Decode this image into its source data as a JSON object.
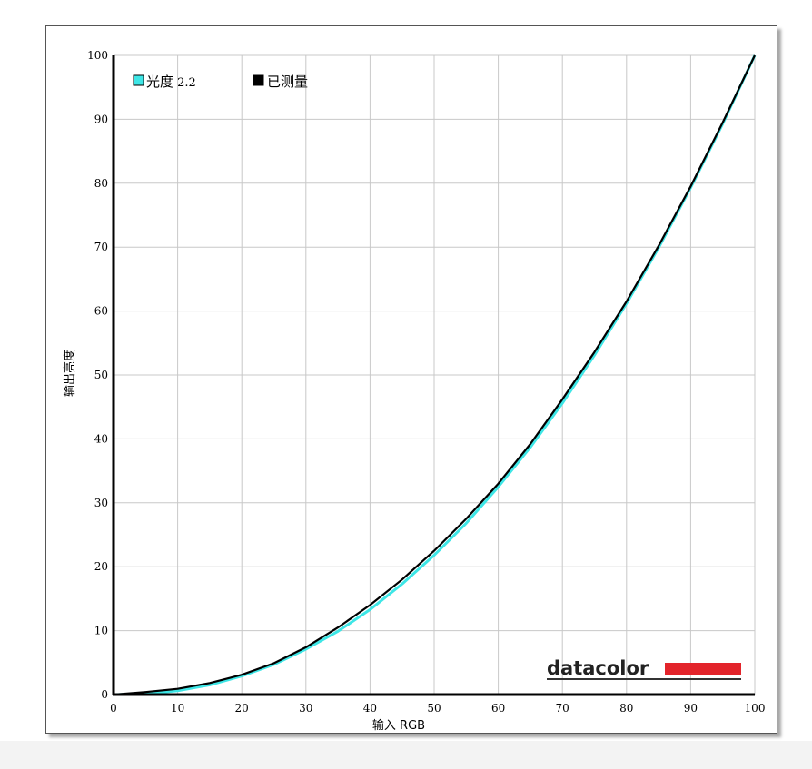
{
  "chart_data": {
    "type": "line",
    "xlabel": "输入 RGB",
    "ylabel": "输出亮度",
    "xlim": [
      0,
      100
    ],
    "ylim": [
      0,
      100
    ],
    "xticks": [
      0,
      10,
      20,
      30,
      40,
      50,
      60,
      70,
      80,
      90,
      100
    ],
    "yticks": [
      0,
      10,
      20,
      30,
      40,
      50,
      60,
      70,
      80,
      90,
      100
    ],
    "grid": true,
    "legend_position": "top-left",
    "series": [
      {
        "name": "光度 2.2",
        "color": "#3ee6e6",
        "x": [
          0,
          5,
          10,
          15,
          20,
          25,
          30,
          35,
          40,
          45,
          50,
          55,
          60,
          65,
          70,
          75,
          80,
          85,
          90,
          95,
          100
        ],
        "y": [
          0,
          0.1,
          0.6,
          1.5,
          2.9,
          4.7,
          7.1,
          9.9,
          13.3,
          17.3,
          21.8,
          26.8,
          32.5,
          38.7,
          45.6,
          53.1,
          61.2,
          69.9,
          79.3,
          89.3,
          100
        ]
      },
      {
        "name": "已测量",
        "color": "#000000",
        "x": [
          0,
          5,
          10,
          15,
          20,
          25,
          30,
          35,
          40,
          45,
          50,
          55,
          60,
          65,
          70,
          75,
          80,
          85,
          90,
          95,
          100
        ],
        "y": [
          0,
          0.4,
          0.9,
          1.8,
          3.1,
          4.9,
          7.4,
          10.5,
          14.0,
          18.0,
          22.5,
          27.5,
          33.0,
          39.2,
          46.2,
          53.6,
          61.5,
          70.2,
          79.5,
          89.5,
          100
        ]
      }
    ]
  },
  "logo": {
    "text": "datacolor",
    "bar_color": "#e3242b"
  }
}
